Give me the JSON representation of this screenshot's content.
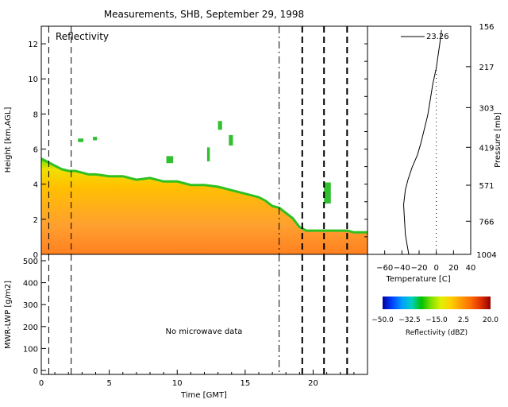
{
  "title": "Measurements, SHB, September 29, 1998",
  "colors": {
    "background": "#ffffff",
    "axes": "#000000",
    "reflectivity_scale": [
      "#0000a0",
      "#0040ff",
      "#00a0ff",
      "#00d0c0",
      "#00c000",
      "#80e000",
      "#e0f000",
      "#ffd000",
      "#ffa000",
      "#ff7000",
      "#e03000",
      "#900000"
    ]
  },
  "chart_data": [
    {
      "id": "reflectivity",
      "type": "heatmap",
      "panel_label": "Reflectivity",
      "xlabel": "",
      "ylabel": "Height [km,AGL]",
      "xlim": [
        0,
        24
      ],
      "ylim": [
        0,
        13
      ],
      "yticks": [
        0,
        2,
        4,
        6,
        8,
        10,
        12
      ],
      "echo_top_km": [
        [
          0.0,
          5.5
        ],
        [
          0.5,
          5.3
        ],
        [
          1.0,
          5.1
        ],
        [
          1.5,
          4.9
        ],
        [
          2.0,
          4.8
        ],
        [
          2.5,
          4.8
        ],
        [
          3.0,
          4.7
        ],
        [
          3.5,
          4.6
        ],
        [
          4.0,
          4.6
        ],
        [
          5.0,
          4.5
        ],
        [
          6.0,
          4.5
        ],
        [
          7.0,
          4.3
        ],
        [
          8.0,
          4.4
        ],
        [
          9.0,
          4.2
        ],
        [
          10.0,
          4.2
        ],
        [
          11.0,
          4.0
        ],
        [
          12.0,
          4.0
        ],
        [
          13.0,
          3.9
        ],
        [
          14.0,
          3.7
        ],
        [
          15.0,
          3.5
        ],
        [
          16.0,
          3.3
        ],
        [
          16.5,
          3.1
        ],
        [
          17.0,
          2.8
        ],
        [
          17.5,
          2.7
        ],
        [
          18.0,
          2.4
        ],
        [
          18.5,
          2.1
        ],
        [
          19.0,
          1.6
        ],
        [
          19.5,
          1.4
        ],
        [
          20.0,
          1.4
        ],
        [
          21.0,
          1.4
        ],
        [
          22.0,
          1.4
        ],
        [
          22.5,
          1.4
        ],
        [
          23.0,
          1.3
        ],
        [
          24.0,
          1.3
        ]
      ],
      "isolated_echoes": [
        {
          "t": [
            2.7,
            3.1
          ],
          "z": [
            6.4,
            6.6
          ]
        },
        {
          "t": [
            3.8,
            4.1
          ],
          "z": [
            6.5,
            6.7
          ]
        },
        {
          "t": [
            9.2,
            9.7
          ],
          "z": [
            5.2,
            5.6
          ]
        },
        {
          "t": [
            12.2,
            12.4
          ],
          "z": [
            5.3,
            6.1
          ]
        },
        {
          "t": [
            13.0,
            13.3
          ],
          "z": [
            7.1,
            7.6
          ]
        },
        {
          "t": [
            13.8,
            14.1
          ],
          "z": [
            6.2,
            6.8
          ]
        },
        {
          "t": [
            20.8,
            21.3
          ],
          "z": [
            2.9,
            4.1
          ]
        }
      ],
      "vertical_lines": [
        {
          "x": 0.55,
          "style": "dashed"
        },
        {
          "x": 2.2,
          "style": "dashed"
        },
        {
          "x": 17.5,
          "style": "dash-dot"
        },
        {
          "x": 19.2,
          "style": "bold-dashed"
        },
        {
          "x": 20.8,
          "style": "bold-dashed"
        },
        {
          "x": 22.5,
          "style": "bold-dashed"
        }
      ]
    },
    {
      "id": "sounding",
      "type": "line",
      "xlabel": "Temperature [C]",
      "ylabel": "Pressure [mb]",
      "xlim": [
        -80,
        40
      ],
      "xticks": [
        -60,
        -40,
        -20,
        0,
        20,
        40
      ],
      "yticks": [
        156,
        217,
        303,
        419,
        571,
        766,
        1004
      ],
      "annotation": "23.26",
      "series": [
        {
          "x": [
            -32,
            -33,
            -34,
            -36,
            -37,
            -38,
            -36,
            -33,
            -28,
            -22,
            -18,
            -14,
            -10,
            -7,
            -4,
            0,
            2,
            4,
            6
          ],
          "y": [
            0.0,
            0.5,
            1.0,
            2.0,
            3.5,
            5.0,
            6.5,
            7.5,
            8.8,
            10.0,
            11.2,
            12.6,
            14.0,
            15.6,
            17.2,
            18.8,
            20.0,
            21.2,
            22.6
          ]
        }
      ],
      "reference_line": {
        "x": 0,
        "style": "dotted"
      }
    },
    {
      "id": "lwp",
      "type": "line",
      "xlabel": "Time [GMT]",
      "ylabel": "MWR-LWP [g/m2]",
      "xlim": [
        0,
        24
      ],
      "xticks": [
        0,
        5,
        10,
        15,
        20
      ],
      "ylim": [
        0,
        500
      ],
      "yticks": [
        0,
        100,
        200,
        300,
        400,
        500
      ],
      "message": "No microwave data"
    },
    {
      "id": "colorbar",
      "type": "heatmap",
      "xlabel": "Reflectivity (dBZ)",
      "xlim": [
        -50,
        20
      ],
      "tick_labels": [
        "−50.0",
        "−32.5",
        "−15.0",
        "2.5",
        "20.0"
      ]
    }
  ]
}
